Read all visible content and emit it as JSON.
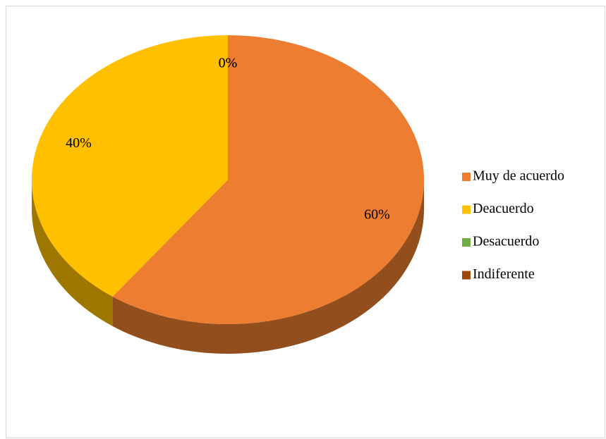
{
  "chart_data": {
    "type": "pie",
    "categories": [
      "Muy de acuerdo",
      "Deacuerdo",
      "Desacuerdo",
      "Indiferente"
    ],
    "values": [
      60,
      40,
      0,
      0
    ],
    "value_labels": [
      "60%",
      "40%",
      "0%",
      "0%"
    ],
    "colors": [
      "#ed7d31",
      "#ffc000",
      "#70ad47",
      "#9e480e"
    ],
    "legend": "right"
  }
}
